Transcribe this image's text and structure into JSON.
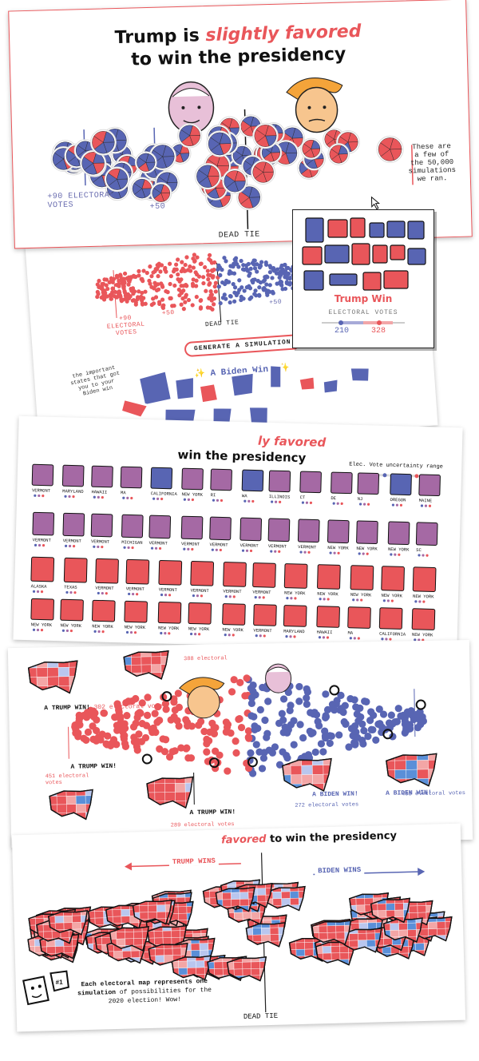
{
  "colors": {
    "red": "#e9565a",
    "blue": "#5865b3",
    "purple": "#a569a4",
    "dark": "#111111"
  },
  "panel1": {
    "title_part1": "Trump is ",
    "title_emphasis": "slightly favored",
    "title_line2": "to win the presidency",
    "label_left": "+90 ELECTORAL\nVOTES",
    "label_plus50": "+50",
    "label_dead_tie": "DEAD TIE",
    "annotation": "These are\na few of\nthe 50,000\nsimulations\nwe ran."
  },
  "popup": {
    "result": "Trump Win",
    "ev_label": "ELECTORAL VOTES",
    "biden_ev": "210",
    "trump_ev": "328"
  },
  "panel2": {
    "label_plus90": "+90\nELECTORAL\nVOTES",
    "label_plus50_left": "+50",
    "label_plus50_right": "+50",
    "label_dead_tie": "DEAD TIE",
    "generate_button": "GENERATE A SIMULATION",
    "biden_win": "✨ A Biden Win! ✨",
    "side_note": "the important\nstates that got\nyou to your\nBiden win"
  },
  "panel3": {
    "title_partial": "ly favored",
    "title_line2": "win the presidency",
    "legend_title": "Elec. Vote uncertainty range",
    "states": [
      "VERMONT",
      "MARYLAND",
      "HAWAII",
      "MA",
      "CALIFORNIA",
      "NEW YORK",
      "RI",
      "WA",
      "ILLINOIS",
      "CT",
      "DE",
      "NJ",
      "OREGON",
      "MAINE",
      "VERMONT",
      "VERMONT",
      "VERMONT",
      "MICHIGAN",
      "VERMONT",
      "VERMONT",
      "VERMONT",
      "VERMONT",
      "VERMONT",
      "VERMONT",
      "NEW YORK",
      "NEW YORK",
      "NEW YORK",
      "SC",
      "ALASKA",
      "TEXAS",
      "VERMONT",
      "VERMONT",
      "VERMONT",
      "VERMONT",
      "VERMONT",
      "VERMONT",
      "NEW YORK",
      "NEW YORK",
      "NEW YORK",
      "NEW YORK",
      "NEW YORK",
      "NEW YORK",
      "NEW YORK",
      "NEW YORK",
      "NEW YORK",
      "NEW YORK",
      "NEW YORK",
      "NEW YORK"
    ]
  },
  "panel4": {
    "trump_win_1": "A TRUMP WIN!",
    "trump_win_1_votes": "302 electoral votes",
    "trump_win_2": "A TRUMP WIN!",
    "trump_win_2_votes": "451 electoral\nvotes",
    "trump_win_3": "A TRUMP WIN!",
    "trump_win_3_votes": "289 electoral votes",
    "top_votes": "388 electoral",
    "biden_win_1": "A BIDEN WIN!",
    "biden_win_1_votes": "272 electoral votes",
    "biden_win_2": "A BIDEN WIN!",
    "biden_win_2_votes": "485 electoral votes"
  },
  "panel5": {
    "title_emphasis": "favored",
    "title_rest": " to win the presidency",
    "trump_wins": "TRUMP WINS",
    "biden_wins": "BIDEN WINS",
    "dead_tie": "DEAD TIE",
    "caption_part1": "Each electoral map represents one",
    "caption_part2": "simulation",
    "caption_part3": " of possibilities for the",
    "caption_part4": "2020 election! Wow!"
  }
}
